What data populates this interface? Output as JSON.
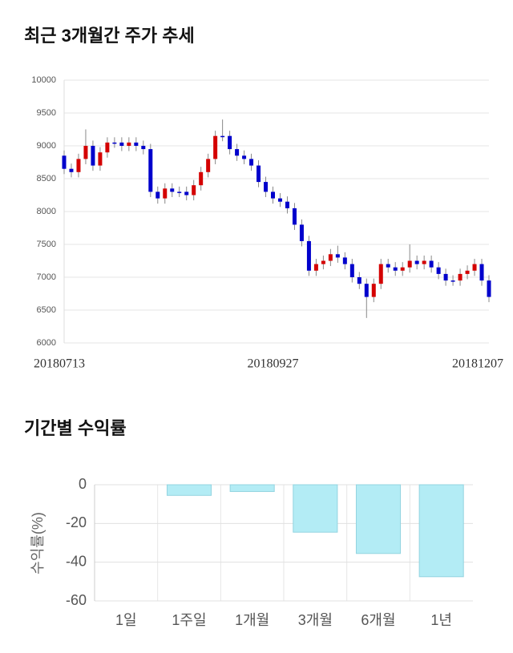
{
  "chart_data": [
    {
      "type": "candlestick",
      "title": "최근 3개월간 주가 추세",
      "categories": [
        "20180713",
        null,
        null,
        null,
        null,
        null,
        null,
        null,
        null,
        null,
        null,
        null,
        null,
        null,
        null,
        null,
        null,
        null,
        null,
        null,
        null,
        null,
        null,
        null,
        null,
        null,
        null,
        null,
        null,
        "20180927",
        null,
        null,
        null,
        null,
        null,
        null,
        null,
        null,
        null,
        null,
        null,
        null,
        null,
        null,
        null,
        null,
        null,
        null,
        null,
        null,
        null,
        null,
        null,
        null,
        null,
        null,
        null,
        null,
        null,
        "20181207"
      ],
      "open": [
        8850,
        8650,
        8600,
        8800,
        9000,
        8700,
        8900,
        9050,
        9050,
        9000,
        9050,
        9000,
        8950,
        8300,
        8200,
        8350,
        8300,
        8300,
        8250,
        8400,
        8600,
        8800,
        9150,
        9150,
        8950,
        8850,
        8800,
        8700,
        8450,
        8300,
        8200,
        8150,
        8050,
        7800,
        7550,
        7100,
        7200,
        7250,
        7350,
        7300,
        7200,
        7000,
        6900,
        6700,
        6900,
        7200,
        7150,
        7100,
        7150,
        7250,
        7200,
        7250,
        7150,
        7050,
        6950,
        6950,
        7050,
        7100,
        7200,
        6950
      ],
      "high": [
        8930,
        8730,
        8880,
        9250,
        9080,
        8980,
        9130,
        9130,
        9130,
        9130,
        9130,
        9080,
        9030,
        8380,
        8430,
        8430,
        8380,
        8380,
        8480,
        8680,
        8880,
        9230,
        9400,
        9230,
        9030,
        8930,
        8880,
        8780,
        8530,
        8380,
        8280,
        8230,
        8130,
        7880,
        7630,
        7280,
        7330,
        7430,
        7480,
        7380,
        7280,
        7080,
        6980,
        6980,
        7280,
        7280,
        7230,
        7230,
        7500,
        7330,
        7330,
        7330,
        7230,
        7130,
        7030,
        7130,
        7180,
        7280,
        7280,
        7030
      ],
      "low": [
        8570,
        8520,
        8520,
        8720,
        8620,
        8620,
        8820,
        8970,
        8920,
        8920,
        8920,
        8870,
        8220,
        8120,
        8120,
        8220,
        8220,
        8170,
        8170,
        8320,
        8520,
        8720,
        9070,
        8870,
        8770,
        8720,
        8620,
        8370,
        8220,
        8120,
        8070,
        7970,
        7720,
        7470,
        7020,
        7020,
        7120,
        7170,
        7220,
        7120,
        6920,
        6820,
        6380,
        6620,
        6820,
        7070,
        7020,
        7020,
        7070,
        7120,
        7120,
        7070,
        6970,
        6870,
        6870,
        6870,
        6970,
        7020,
        6870,
        6620
      ],
      "close": [
        8650,
        8600,
        8800,
        9000,
        8700,
        8900,
        9050,
        9050,
        9000,
        9050,
        9000,
        8950,
        8300,
        8200,
        8350,
        8300,
        8300,
        8250,
        8400,
        8600,
        8800,
        9150,
        9150,
        8950,
        8850,
        8800,
        8700,
        8450,
        8300,
        8200,
        8150,
        8050,
        7800,
        7550,
        7100,
        7200,
        7250,
        7350,
        7300,
        7200,
        7000,
        6900,
        6700,
        6900,
        7200,
        7150,
        7100,
        7150,
        7250,
        7200,
        7250,
        7150,
        7050,
        6950,
        6950,
        7050,
        7100,
        7200,
        6950,
        6700
      ],
      "up_color": "#d40000",
      "down_color": "#0000cc",
      "ylim": [
        6000,
        10000
      ],
      "yticks": [
        6000,
        6500,
        7000,
        7500,
        8000,
        8500,
        9000,
        9500,
        10000
      ],
      "grid": true
    },
    {
      "type": "bar",
      "title": "기간별 수익률",
      "y_label": "수익률(%)",
      "categories": [
        "1일",
        "1주일",
        "1개월",
        "3개월",
        "6개월",
        "1년"
      ],
      "values": [
        0,
        -5.5,
        -3.5,
        -24.5,
        -35.5,
        -47.5
      ],
      "color": "#b3ecf5",
      "ylim": [
        -60,
        0
      ],
      "yticks": [
        0,
        -20,
        -40,
        -60
      ],
      "grid": true
    }
  ]
}
